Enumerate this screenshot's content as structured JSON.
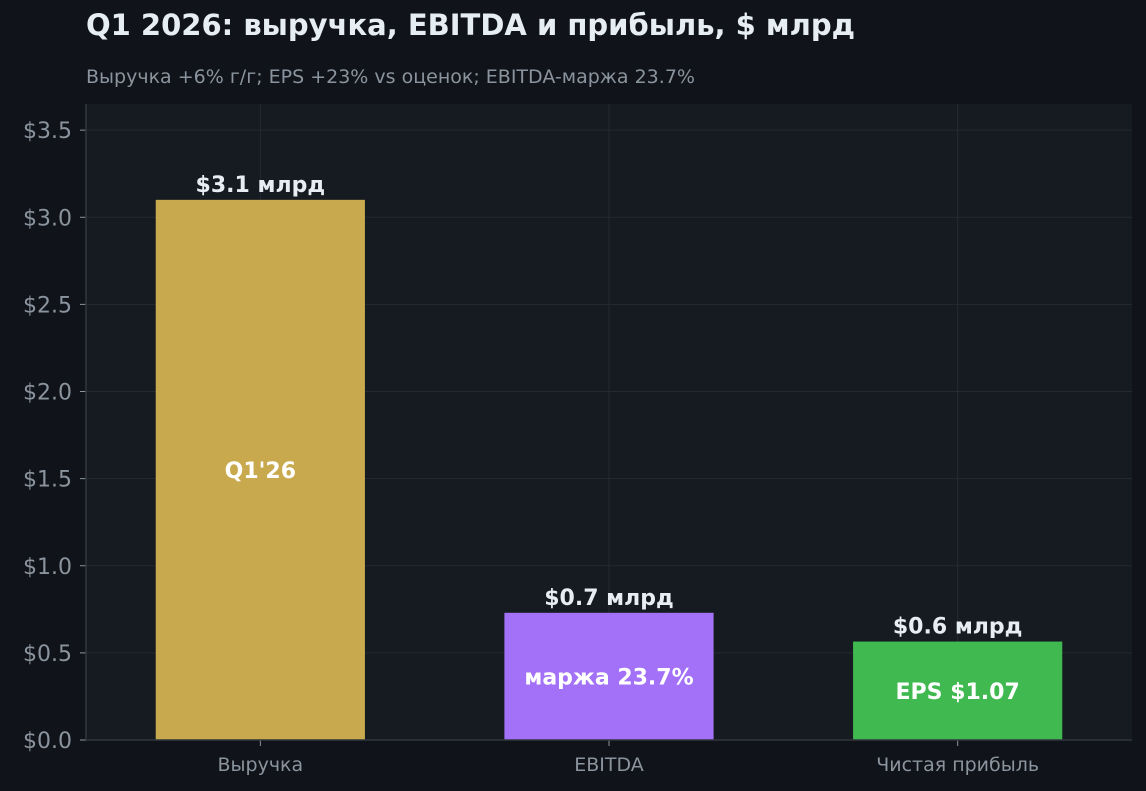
{
  "header": {
    "title": "Q1 2026: выручка, EBITDA и прибыль, $ млрд",
    "subtitle": "Выручка +6% г/г; EPS +23% vs оценок; EBITDA-маржа 23.7%"
  },
  "colors": {
    "background": "#10141a",
    "plot_area": "#161b22",
    "grid": "#232a33",
    "axis": "#30363d",
    "tick_text": "#8b949e",
    "label_text": "#e6edf3",
    "revenue": "#c9a94d",
    "ebitda": "#a371f7",
    "net_income": "#3fb950"
  },
  "chart_data": {
    "type": "bar",
    "title": "Q1 2026: выручка, EBITDA и прибыль, $ млрд",
    "subtitle": "Выручка +6% г/г; EPS +23% vs оценок; EBITDA-маржа 23.7%",
    "categories": [
      "Выручка",
      "EBITDA",
      "Чистая прибыль"
    ],
    "values": [
      3.1,
      0.73,
      0.565
    ],
    "value_labels": [
      "$3.1 млрд",
      "$0.7 млрд",
      "$0.6 млрд"
    ],
    "inner_labels": [
      "Q1'26",
      "маржа 23.7%",
      "EPS $1.07"
    ],
    "bar_colors": [
      "#c9a94d",
      "#a371f7",
      "#3fb950"
    ],
    "ylim": [
      0,
      3.65
    ],
    "yticks": [
      0,
      0.5,
      1.0,
      1.5,
      2.0,
      2.5,
      3.0,
      3.5
    ],
    "ytick_labels": [
      "$0.0",
      "$0.5",
      "$1.0",
      "$1.5",
      "$2.0",
      "$2.5",
      "$3.0",
      "$3.5"
    ],
    "xlabel": "",
    "ylabel": "",
    "grid": true,
    "legend": "none"
  }
}
